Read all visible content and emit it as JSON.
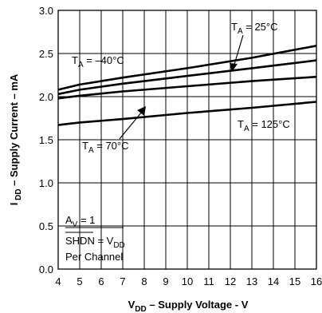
{
  "chart_data": {
    "type": "line",
    "xlabel": {
      "main": "V",
      "sub": "DD",
      "rest": " – Supply Voltage - V"
    },
    "ylabel": {
      "main": "I",
      "sub": " DD",
      "rest": " – Supply Current – mA"
    },
    "xlim": [
      4,
      16
    ],
    "ylim": [
      0.0,
      3.0
    ],
    "x_ticks": [
      "4",
      "5",
      "6",
      "7",
      "8",
      "9",
      "10",
      "11",
      "12",
      "13",
      "14",
      "15",
      "16"
    ],
    "y_ticks": [
      "0.0",
      "0.5",
      "1.0",
      "1.5",
      "2.0",
      "2.5",
      "3.0"
    ],
    "grid": true,
    "series": [
      {
        "name": "T_A = −40°C",
        "x": [
          4,
          5,
          7,
          10,
          13,
          16
        ],
        "y": [
          2.08,
          2.14,
          2.22,
          2.33,
          2.45,
          2.59
        ]
      },
      {
        "name": "T_A = 25°C",
        "x": [
          4,
          5,
          7,
          10,
          13,
          16
        ],
        "y": [
          2.03,
          2.08,
          2.15,
          2.24,
          2.33,
          2.42
        ]
      },
      {
        "name": "T_A = 70°C",
        "x": [
          4,
          5,
          7,
          10,
          13,
          16
        ],
        "y": [
          1.98,
          2.01,
          2.06,
          2.12,
          2.18,
          2.23
        ]
      },
      {
        "name": "T_A = 125°C",
        "x": [
          4,
          5,
          7,
          10,
          13,
          16
        ],
        "y": [
          1.67,
          1.7,
          1.74,
          1.81,
          1.87,
          1.94
        ]
      }
    ],
    "annotations": [
      {
        "pre": "T",
        "sub": "A",
        "post": " = 25°C"
      },
      {
        "pre": "T",
        "sub": "A",
        "post": " = –40°C"
      },
      {
        "pre": "T",
        "sub": "A",
        "post": " = 70°C"
      },
      {
        "pre": "T",
        "sub": "A",
        "post": " = 125°C"
      }
    ],
    "conditions": [
      {
        "pre": "A",
        "sub": "V",
        "post": " = 1"
      },
      {
        "pre": "SHDN = V",
        "sub": "DD",
        "post": ""
      },
      {
        "pre": "Per Channel",
        "sub": "",
        "post": ""
      }
    ]
  }
}
